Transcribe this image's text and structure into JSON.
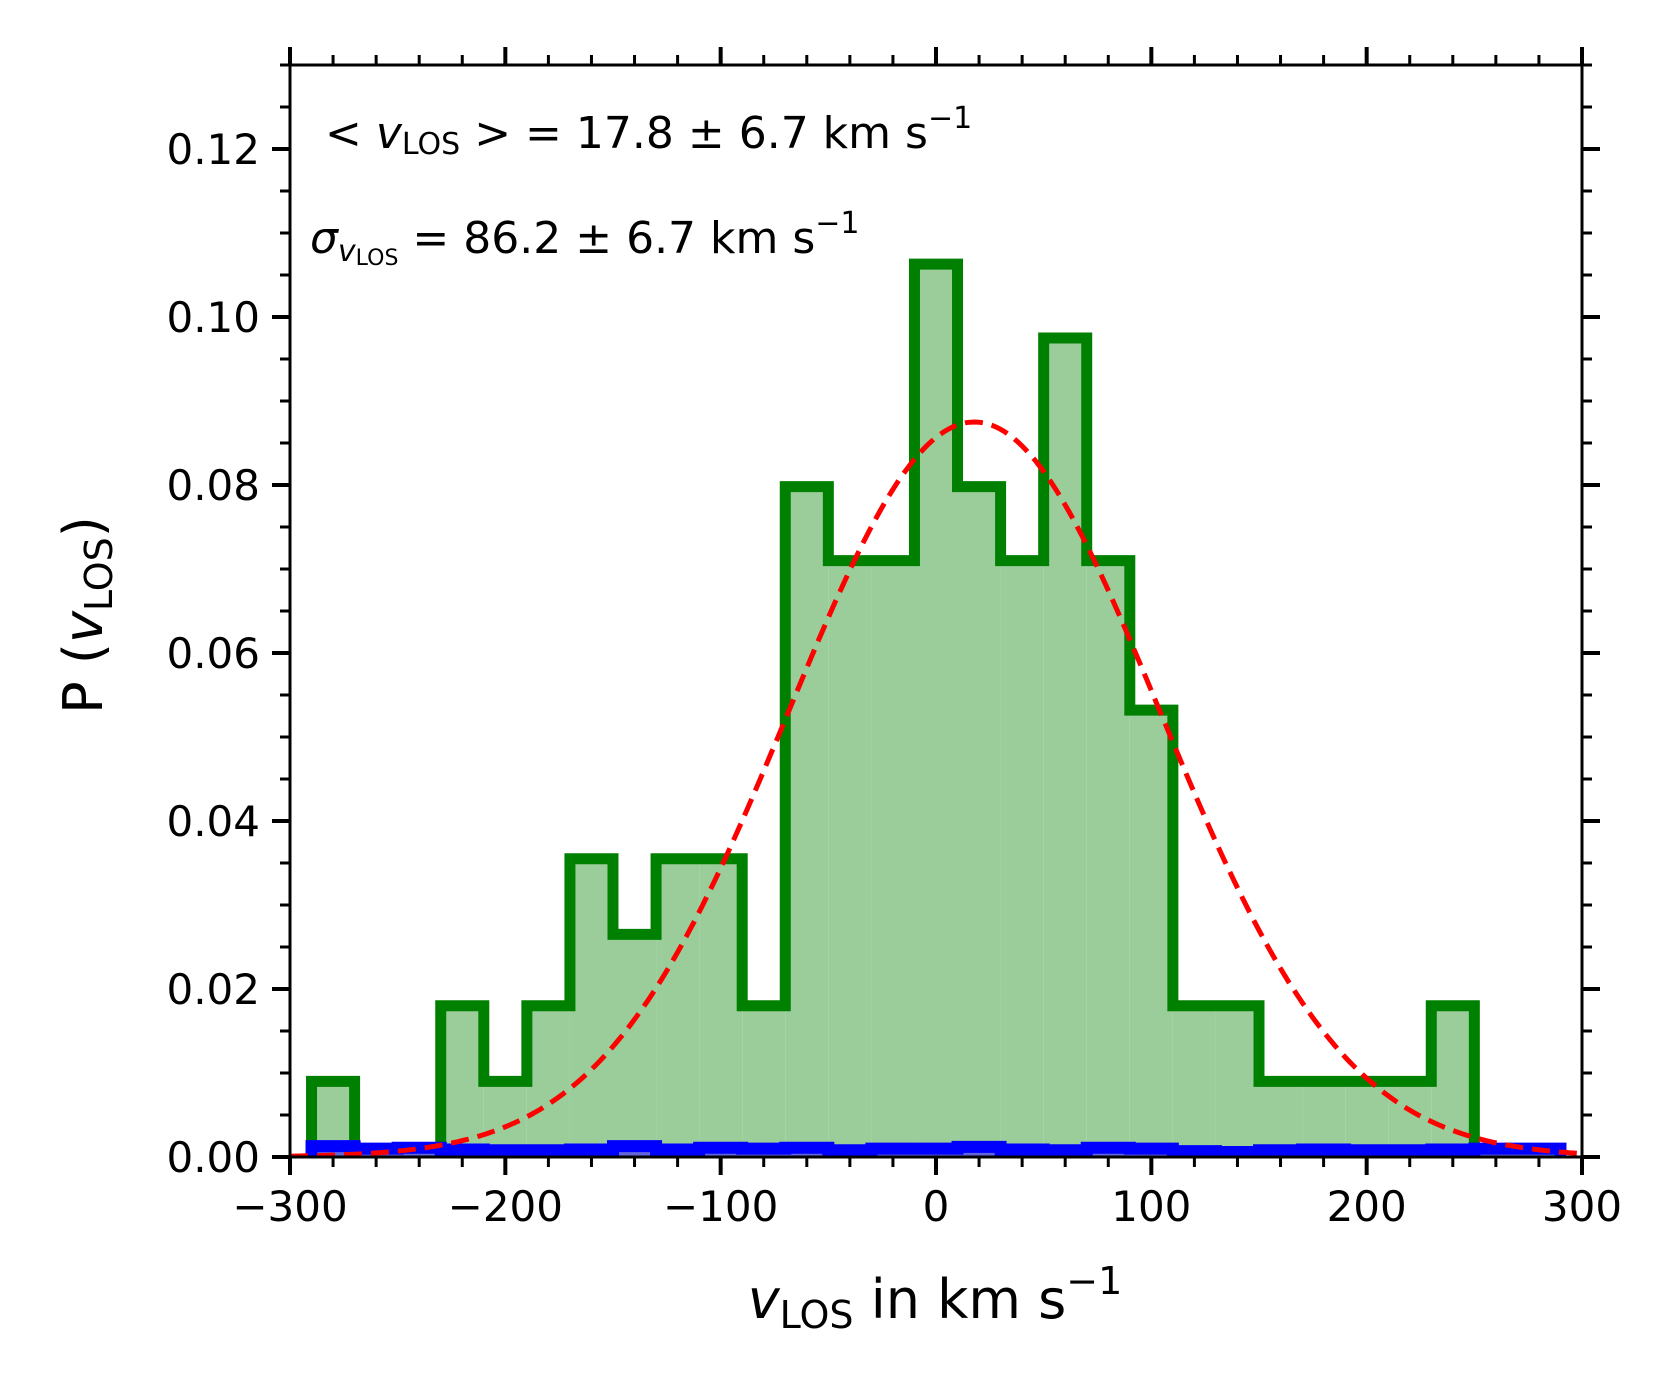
{
  "chart_data": {
    "type": "histogram",
    "title": "",
    "xlabel": {
      "main": "v",
      "sub": "LOS",
      "rest": " in km s",
      "sup": "−1"
    },
    "ylabel": {
      "pre": "P (",
      "main": "v",
      "sub": "LOS",
      "post": ")"
    },
    "xlim": [
      -300,
      300
    ],
    "ylim": [
      0,
      0.13
    ],
    "xticks": [
      -300,
      -200,
      -100,
      0,
      100,
      200,
      300
    ],
    "xtick_labels": [
      "−300",
      "−200",
      "−100",
      "0",
      "100",
      "200",
      "300"
    ],
    "yticks": [
      0.0,
      0.02,
      0.04,
      0.06,
      0.08,
      0.1,
      0.12
    ],
    "ytick_labels": [
      "0.00",
      "0.02",
      "0.04",
      "0.06",
      "0.08",
      "0.10",
      "0.12"
    ],
    "x_minor_step": 20,
    "y_minor_step": 0.005,
    "grid": false,
    "annotations": {
      "mean": {
        "pre": "< ",
        "var": "v",
        "sub": "LOS",
        "post": " > = 17.8 ± 6.7 km s",
        "sup": "−1"
      },
      "sigma": {
        "sym": "σ",
        "var": "v",
        "sub": "LOS",
        "post": " = 86.2 ± 6.7 km s",
        "sup": "−1"
      }
    },
    "series": [
      {
        "kind": "histogram",
        "color": "#008000",
        "fill": "#9bcd9b",
        "bin_edges": [
          -290,
          -270,
          -250,
          -230,
          -210,
          -190,
          -170,
          -150,
          -130,
          -110,
          -90,
          -70,
          -50,
          -30,
          -10,
          10,
          30,
          50,
          70,
          90,
          110,
          130,
          150,
          170,
          190,
          210,
          230,
          250
        ],
        "values": [
          0.009,
          0.0,
          0.0,
          0.018,
          0.009,
          0.018,
          0.0355,
          0.0265,
          0.0355,
          0.0355,
          0.018,
          0.0798,
          0.071,
          0.071,
          0.1063,
          0.0798,
          0.071,
          0.0975,
          0.071,
          0.0532,
          0.018,
          0.018,
          0.009,
          0.009,
          0.009,
          0.009,
          0.018
        ]
      },
      {
        "kind": "histogram",
        "color": "#0000ff",
        "fill": "#6464dc",
        "bin_edges": [
          -290,
          -270,
          -250,
          -230,
          -210,
          -190,
          -170,
          -150,
          -130,
          -110,
          -90,
          -70,
          -50,
          -30,
          -10,
          10,
          30,
          50,
          70,
          90,
          110,
          130,
          150,
          170,
          190,
          210,
          230,
          250,
          270,
          290
        ],
        "values": [
          0.0013,
          0.001,
          0.0011,
          0.0009,
          0.0008,
          0.0008,
          0.0009,
          0.0013,
          0.0009,
          0.0011,
          0.001,
          0.0011,
          0.0008,
          0.001,
          0.001,
          0.0012,
          0.0009,
          0.0008,
          0.0011,
          0.001,
          0.0007,
          0.0006,
          0.0008,
          0.0009,
          0.0008,
          0.0008,
          0.0009,
          0.001,
          0.001
        ]
      },
      {
        "kind": "gaussian",
        "color": "#ff0000",
        "style": "dashed",
        "mean": 17.8,
        "sigma": 86.2,
        "peak": 0.0875
      }
    ]
  }
}
